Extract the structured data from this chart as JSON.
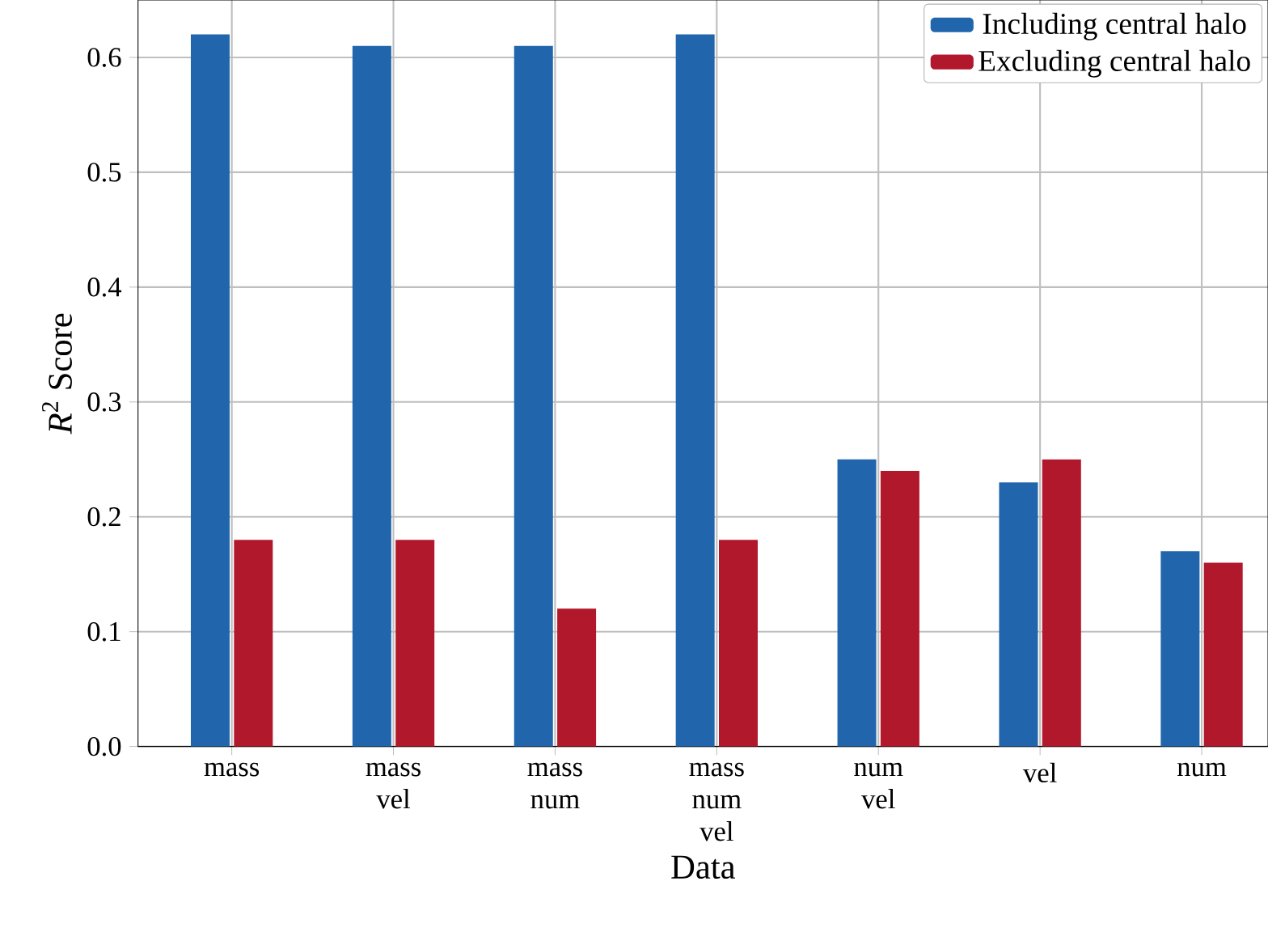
{
  "chart_data": {
    "type": "bar",
    "xlabel": "Data",
    "ylabel": "*R*$^{2}$ Score",
    "categories": [
      "mass",
      "mass vel",
      "mass num",
      "mass num vel",
      "num vel",
      "vel",
      "num"
    ],
    "series": [
      {
        "name": "Including central halo",
        "color": "#2166ac",
        "values": [
          0.62,
          0.61,
          0.61,
          0.62,
          0.25,
          0.23,
          0.17
        ]
      },
      {
        "name": "Excluding central halo",
        "color": "#b2182b",
        "values": [
          0.18,
          0.18,
          0.12,
          0.18,
          0.24,
          0.25,
          0.16
        ]
      }
    ],
    "ylim": [
      0,
      0.65
    ],
    "yticks": [
      {
        "value": 0,
        "label": "0.0"
      },
      {
        "value": 0.1,
        "label": "0.1"
      },
      {
        "value": 0.2,
        "label": "0.2"
      },
      {
        "value": 0.3,
        "label": "0.3"
      },
      {
        "value": 0.4,
        "label": "0.4"
      },
      {
        "value": 0.5,
        "label": "0.5"
      },
      {
        "value": 0.6,
        "label": "0.6"
      }
    ],
    "grid": true,
    "legend": "top right"
  }
}
